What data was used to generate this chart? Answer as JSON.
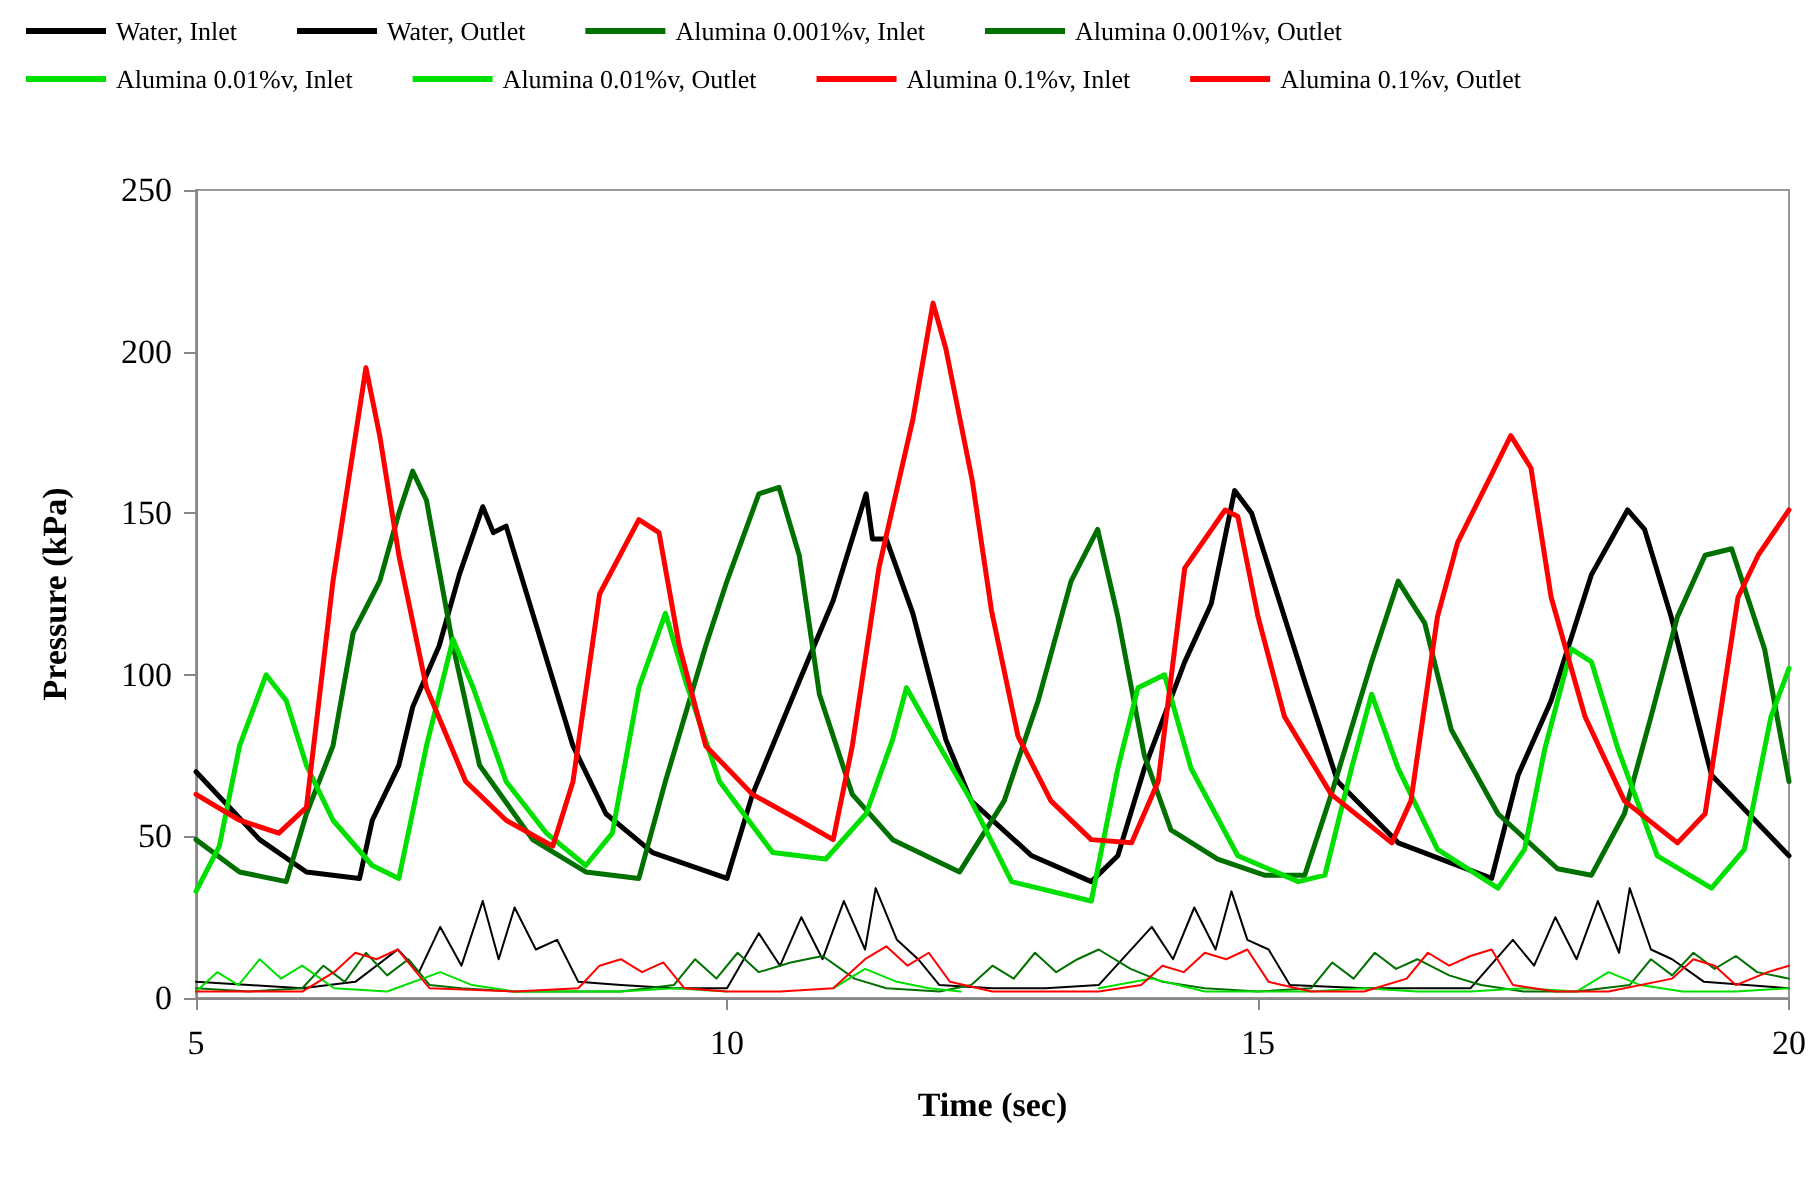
{
  "chart_data": {
    "type": "line",
    "xlabel": "Time (sec)",
    "ylabel": "Pressure (kPa)",
    "xlim": [
      5,
      20
    ],
    "xticks": [
      5,
      10,
      15,
      20
    ],
    "ylim": [
      0,
      250
    ],
    "yticks": [
      0,
      50,
      100,
      150,
      200,
      250
    ],
    "grid": false,
    "legend": "top",
    "marker": "none",
    "line_style": "solid",
    "series": [
      {
        "name": "Water, Inlet",
        "color": "#000000",
        "x": [
          5,
          5.6,
          6.04,
          6.54,
          6.66,
          6.91,
          7.04,
          7.29,
          7.48,
          7.7,
          7.8,
          7.92,
          8.17,
          8.55,
          8.86,
          9.3,
          10.0,
          10.24,
          10.68,
          11.0,
          11.31,
          11.37,
          11.5,
          11.75,
          12.06,
          12.3,
          12.87,
          13.43,
          13.68,
          13.93,
          14.31,
          14.56,
          14.78,
          14.94,
          15.19,
          15.44,
          15.75,
          16.32,
          17.2,
          17.45,
          17.76,
          18.14,
          18.48,
          18.64,
          18.89,
          19.27,
          20
        ],
        "values": [
          70,
          49,
          39,
          37,
          55,
          72,
          90,
          109,
          131,
          152,
          144,
          146,
          119,
          78,
          57,
          45,
          37,
          63,
          98,
          123,
          156,
          142,
          142,
          119,
          80,
          61,
          44,
          36,
          44,
          71,
          104,
          122,
          157,
          150,
          124,
          98,
          67,
          48,
          37,
          69,
          92,
          131,
          151,
          145,
          118,
          69,
          44
        ]
      },
      {
        "name": "Water, Outlet",
        "color": "#000000",
        "x": [
          5,
          5.5,
          6,
          6.5,
          6.9,
          7.1,
          7.3,
          7.5,
          7.7,
          7.85,
          8.0,
          8.2,
          8.4,
          8.6,
          9.0,
          9.5,
          10.0,
          10.3,
          10.5,
          10.7,
          10.9,
          11.1,
          11.3,
          11.4,
          11.6,
          11.8,
          12.0,
          12.5,
          13.0,
          13.5,
          14.0,
          14.2,
          14.4,
          14.6,
          14.75,
          14.9,
          15.1,
          15.3,
          16.0,
          16.5,
          17.0,
          17.4,
          17.6,
          17.8,
          18.0,
          18.2,
          18.4,
          18.5,
          18.7,
          18.9,
          19.2,
          19.6,
          20
        ],
        "values": [
          5,
          4,
          3,
          5,
          15,
          8,
          22,
          10,
          30,
          12,
          28,
          15,
          18,
          5,
          4,
          3,
          3,
          20,
          10,
          25,
          12,
          30,
          15,
          34,
          18,
          12,
          4,
          3,
          3,
          4,
          22,
          12,
          28,
          15,
          33,
          18,
          15,
          4,
          3,
          3,
          3,
          18,
          10,
          25,
          12,
          30,
          14,
          34,
          15,
          12,
          5,
          4,
          3
        ]
      },
      {
        "name": "Alumina 0.001%v, Inlet",
        "color": "#007000",
        "x": [
          5,
          5.41,
          5.85,
          6.04,
          6.29,
          6.48,
          6.73,
          6.91,
          7.04,
          7.17,
          7.42,
          7.67,
          8.17,
          8.67,
          9.17,
          9.42,
          9.8,
          10.0,
          10.3,
          10.49,
          10.68,
          10.87,
          11.18,
          11.56,
          12.19,
          12.61,
          12.93,
          13.24,
          13.49,
          13.68,
          13.93,
          14.18,
          14.62,
          15.06,
          15.44,
          15.69,
          16.07,
          16.32,
          16.57,
          16.82,
          17.26,
          17.82,
          18.14,
          18.45,
          18.7,
          18.95,
          19.21,
          19.46,
          19.77,
          20
        ],
        "values": [
          49,
          39,
          36,
          57,
          78,
          113,
          129,
          150,
          163,
          154,
          109,
          72,
          49,
          39,
          37,
          67,
          109,
          129,
          156,
          158,
          137,
          94,
          63,
          49,
          39,
          61,
          92,
          129,
          145,
          118,
          75,
          52,
          43,
          38,
          38,
          63,
          104,
          129,
          116,
          83,
          57,
          40,
          38,
          57,
          87,
          118,
          137,
          139,
          108,
          67
        ]
      },
      {
        "name": "Alumina 0.001%v, Outlet",
        "color": "#007000",
        "x": [
          5,
          5.5,
          6,
          6.2,
          6.4,
          6.6,
          6.8,
          7.0,
          7.2,
          7.5,
          8,
          8.5,
          9,
          9.5,
          9.7,
          9.9,
          10.1,
          10.3,
          10.6,
          10.9,
          11.2,
          11.5,
          12,
          12.3,
          12.5,
          12.7,
          12.9,
          13.1,
          13.3,
          13.5,
          13.8,
          14.1,
          14.5,
          15,
          15.5,
          15.7,
          15.9,
          16.1,
          16.3,
          16.5,
          16.8,
          17.1,
          17.5,
          18,
          18.5,
          18.7,
          18.9,
          19.1,
          19.3,
          19.5,
          19.7,
          20
        ],
        "values": [
          3,
          2,
          3,
          10,
          5,
          14,
          7,
          12,
          4,
          3,
          2,
          2,
          2,
          4,
          12,
          6,
          14,
          8,
          11,
          13,
          6,
          3,
          2,
          4,
          10,
          6,
          14,
          8,
          12,
          15,
          9,
          5,
          3,
          2,
          3,
          11,
          6,
          14,
          9,
          12,
          7,
          4,
          2,
          2,
          4,
          12,
          7,
          14,
          9,
          13,
          8,
          6
        ]
      },
      {
        "name": "Alumina 0.01%v, Inlet",
        "color": "#00e000",
        "x": [
          5,
          5.22,
          5.41,
          5.66,
          5.85,
          6.04,
          6.29,
          6.66,
          6.91,
          7.17,
          7.42,
          7.61,
          7.92,
          8.3,
          8.67,
          8.92,
          9.17,
          9.42,
          9.61,
          9.93,
          10.43,
          10.93,
          11.31,
          11.56,
          11.69,
          12.0,
          12.3,
          12.68,
          13.43,
          13.68,
          13.87,
          14.12,
          14.37,
          14.81,
          15.38,
          15.63,
          15.88,
          16.07,
          16.32,
          16.69,
          17.26,
          17.51,
          17.7,
          17.95,
          18.14,
          18.39,
          18.76,
          19.27,
          19.58,
          19.83,
          20
        ],
        "values": [
          33,
          47,
          78,
          100,
          92,
          72,
          55,
          41,
          37,
          78,
          111,
          96,
          67,
          51,
          41,
          51,
          96,
          119,
          98,
          67,
          45,
          43,
          57,
          80,
          96,
          78,
          61,
          36,
          30,
          71,
          96,
          100,
          71,
          44,
          36,
          38,
          71,
          94,
          71,
          46,
          34,
          46,
          77,
          108,
          104,
          77,
          44,
          34,
          46,
          87,
          102
        ]
      },
      {
        "name": "Alumina 0.01%v, Outlet",
        "color": "#00e000",
        "x": [
          5,
          5.2,
          5.4,
          5.6,
          5.8,
          6.0,
          6.3,
          6.8,
          7.3,
          7.6,
          8,
          8.5,
          9,
          9.5,
          10,
          10.5,
          11,
          11.3,
          11.6,
          11.9,
          12.2,
          12.6,
          13,
          13.5,
          14,
          14.5,
          15,
          15.5,
          16,
          16.5,
          17,
          17.5,
          18,
          18.3,
          18.6,
          19,
          19.5,
          20
        ],
        "values": [
          2,
          8,
          4,
          12,
          6,
          10,
          3,
          2,
          8,
          4,
          2,
          2,
          2,
          3,
          2,
          null,
          3,
          9,
          5,
          3,
          2,
          null,
          null,
          3,
          6,
          2,
          2,
          2,
          3,
          2,
          2,
          3,
          2,
          8,
          4,
          2,
          2,
          3
        ]
      },
      {
        "name": "Alumina 0.1%v, Inlet",
        "color": "#ff0000",
        "x": [
          5,
          5.41,
          5.78,
          6.04,
          6.29,
          6.6,
          6.73,
          6.91,
          7.17,
          7.54,
          7.92,
          8.36,
          8.55,
          8.8,
          9.17,
          9.36,
          9.55,
          9.8,
          10.24,
          10.68,
          11.0,
          11.18,
          11.43,
          11.75,
          11.94,
          12.06,
          12.31,
          12.49,
          12.74,
          13.05,
          13.43,
          13.81,
          14.06,
          14.31,
          14.69,
          14.81,
          15.0,
          15.25,
          15.69,
          16.26,
          16.44,
          16.69,
          16.88,
          17.2,
          17.38,
          17.57,
          17.76,
          18.08,
          18.45,
          18.95,
          19.21,
          19.52,
          19.71,
          20
        ],
        "values": [
          63,
          55,
          51,
          59,
          129,
          195,
          174,
          137,
          96,
          67,
          55,
          47,
          67,
          125,
          148,
          144,
          109,
          78,
          63,
          55,
          49,
          78,
          133,
          179,
          215,
          201,
          160,
          120,
          81,
          61,
          49,
          48,
          67,
          133,
          151,
          149,
          118,
          87,
          63,
          48,
          61,
          118,
          141,
          162,
          174,
          164,
          124,
          87,
          61,
          48,
          57,
          124,
          137,
          151
        ]
      },
      {
        "name": "Alumina 0.1%v, Outlet",
        "color": "#ff0000",
        "x": [
          5,
          5.5,
          6,
          6.3,
          6.5,
          6.7,
          6.9,
          7.2,
          8,
          8.6,
          8.8,
          9.0,
          9.2,
          9.4,
          9.6,
          10,
          10.5,
          11,
          11.3,
          11.5,
          11.7,
          11.9,
          12.1,
          12.5,
          13,
          13.5,
          13.9,
          14.1,
          14.3,
          14.5,
          14.7,
          14.9,
          15.1,
          15.5,
          16,
          16.4,
          16.6,
          16.8,
          17.0,
          17.2,
          17.4,
          17.8,
          18.3,
          18.9,
          19.1,
          19.3,
          19.5,
          19.8,
          20
        ],
        "values": [
          2,
          2,
          2,
          8,
          14,
          12,
          15,
          3,
          2,
          3,
          10,
          12,
          8,
          11,
          3,
          2,
          2,
          3,
          12,
          16,
          10,
          14,
          5,
          2,
          2,
          2,
          4,
          10,
          8,
          14,
          12,
          15,
          5,
          2,
          2,
          6,
          14,
          10,
          13,
          15,
          4,
          2,
          2,
          6,
          12,
          10,
          4,
          8,
          10
        ]
      }
    ]
  }
}
